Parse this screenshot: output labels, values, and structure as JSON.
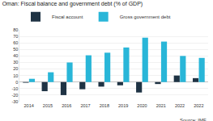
{
  "chart_data": {
    "type": "bar",
    "title": "Oman: Fiscal balance and government debt (% of GDP)",
    "source": "Source: IMF",
    "categories": [
      "2014",
      "2015",
      "2016",
      "2017",
      "2018",
      "2019",
      "2020",
      "2021",
      "2022",
      "2022"
    ],
    "series": [
      {
        "name": "Fiscal account",
        "color": "#1f3344",
        "values": [
          -1,
          -14,
          -20,
          -11,
          -7,
          -5,
          -16,
          -3,
          10,
          6
        ]
      },
      {
        "name": "Gross government debt",
        "color": "#29b6d8",
        "values": [
          5,
          15,
          30,
          41,
          45,
          53,
          68,
          62,
          40,
          37
        ]
      }
    ],
    "ylim": [
      -30,
      80
    ],
    "yticks": [
      -30,
      -20,
      -10,
      0,
      10,
      20,
      30,
      40,
      50,
      60,
      70,
      80
    ],
    "grid": true,
    "legend": "top-left"
  }
}
